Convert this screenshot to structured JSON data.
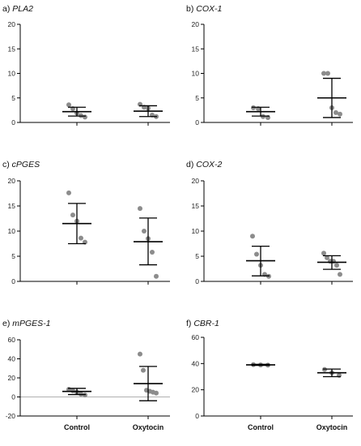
{
  "colors": {
    "axis": "#000000",
    "point": "#8c8c8c",
    "error_bar": "#000000",
    "zero_line": "#b0b0b0"
  },
  "chart_data": [
    {
      "id": "a",
      "type": "scatter",
      "title_prefix": "a) ",
      "title": "PLA2",
      "ylim": [
        0,
        20
      ],
      "yticks": [
        0,
        5,
        10,
        15,
        20
      ],
      "categories": [
        "Control",
        "Oxytocin"
      ],
      "show_category_labels": false,
      "zero_line": false,
      "series": [
        {
          "category": "Control",
          "points": [
            3.6,
            2.8,
            1.9,
            1.4,
            1.1
          ],
          "mean": 2.2,
          "error_low": 1.3,
          "error_high": 3.1
        },
        {
          "category": "Oxytocin",
          "points": [
            3.7,
            3.1,
            2.9,
            1.5,
            1.2
          ],
          "mean": 2.3,
          "error_low": 1.2,
          "error_high": 3.4
        }
      ]
    },
    {
      "id": "b",
      "type": "scatter",
      "title_prefix": "b) ",
      "title": "COX-1",
      "ylim": [
        0,
        20
      ],
      "yticks": [
        0,
        5,
        10,
        15,
        20
      ],
      "categories": [
        "Control",
        "Oxytocin"
      ],
      "show_category_labels": false,
      "zero_line": false,
      "series": [
        {
          "category": "Control",
          "points": [
            3.0,
            2.8,
            1.2,
            1.0
          ],
          "mean": 2.2,
          "error_low": 1.3,
          "error_high": 3.1
        },
        {
          "category": "Oxytocin",
          "points": [
            10.0,
            10.0,
            3.0,
            2.0,
            1.7
          ],
          "mean": 5.0,
          "error_low": 1.0,
          "error_high": 9.0
        }
      ]
    },
    {
      "id": "c",
      "type": "scatter",
      "title_prefix": "c) ",
      "title": "cPGES",
      "ylim": [
        0,
        20
      ],
      "yticks": [
        0,
        5,
        10,
        15,
        20
      ],
      "categories": [
        "Control",
        "Oxytocin"
      ],
      "show_category_labels": false,
      "zero_line": false,
      "series": [
        {
          "category": "Control",
          "points": [
            17.6,
            13.2,
            12.0,
            8.6,
            7.8
          ],
          "mean": 11.5,
          "error_low": 7.5,
          "error_high": 15.5
        },
        {
          "category": "Oxytocin",
          "points": [
            14.5,
            10.0,
            8.5,
            5.8,
            1.0
          ],
          "mean": 7.9,
          "error_low": 3.3,
          "error_high": 12.6
        }
      ]
    },
    {
      "id": "d",
      "type": "scatter",
      "title_prefix": "d) ",
      "title": "COX-2",
      "ylim": [
        0,
        20
      ],
      "yticks": [
        0,
        5,
        10,
        15,
        20
      ],
      "categories": [
        "Control",
        "Oxytocin"
      ],
      "show_category_labels": false,
      "zero_line": false,
      "series": [
        {
          "category": "Control",
          "points": [
            9.0,
            5.4,
            3.2,
            1.4,
            1.0
          ],
          "mean": 4.1,
          "error_low": 1.1,
          "error_high": 7.0
        },
        {
          "category": "Oxytocin",
          "points": [
            5.6,
            4.7,
            4.0,
            4.0,
            3.2,
            1.4
          ],
          "mean": 3.8,
          "error_low": 2.4,
          "error_high": 5.1
        }
      ]
    },
    {
      "id": "e",
      "type": "scatter",
      "title_prefix": "e) ",
      "title": "mPGES-1",
      "ylim": [
        -20,
        60
      ],
      "yticks": [
        -20,
        0,
        20,
        40,
        60
      ],
      "categories": [
        "Control",
        "Oxytocin"
      ],
      "show_category_labels": true,
      "zero_line": true,
      "series": [
        {
          "category": "Control",
          "points": [
            8.0,
            6.5,
            5.0,
            3.0,
            2.0
          ],
          "mean": 5.8,
          "error_low": 2.5,
          "error_high": 9.0
        },
        {
          "category": "Oxytocin",
          "points": [
            45.0,
            28.0,
            7.0,
            6.0,
            5.0,
            4.0
          ],
          "mean": 14.0,
          "error_low": -4.0,
          "error_high": 32.0
        }
      ]
    },
    {
      "id": "f",
      "type": "scatter",
      "title_prefix": "f) ",
      "title": "CBR-1",
      "ylim": [
        0,
        60
      ],
      "yticks": [
        0,
        20,
        40,
        60
      ],
      "categories": [
        "Control",
        "Oxytocin"
      ],
      "show_category_labels": true,
      "zero_line": false,
      "series": [
        {
          "category": "Control",
          "points": [
            39.2,
            39.0,
            38.8
          ],
          "mean": 39.0,
          "error_low": 38.6,
          "error_high": 39.4
        },
        {
          "category": "Oxytocin",
          "points": [
            35.5,
            33.0,
            31.0
          ],
          "mean": 33.0,
          "error_low": 30.0,
          "error_high": 35.8
        }
      ]
    }
  ]
}
